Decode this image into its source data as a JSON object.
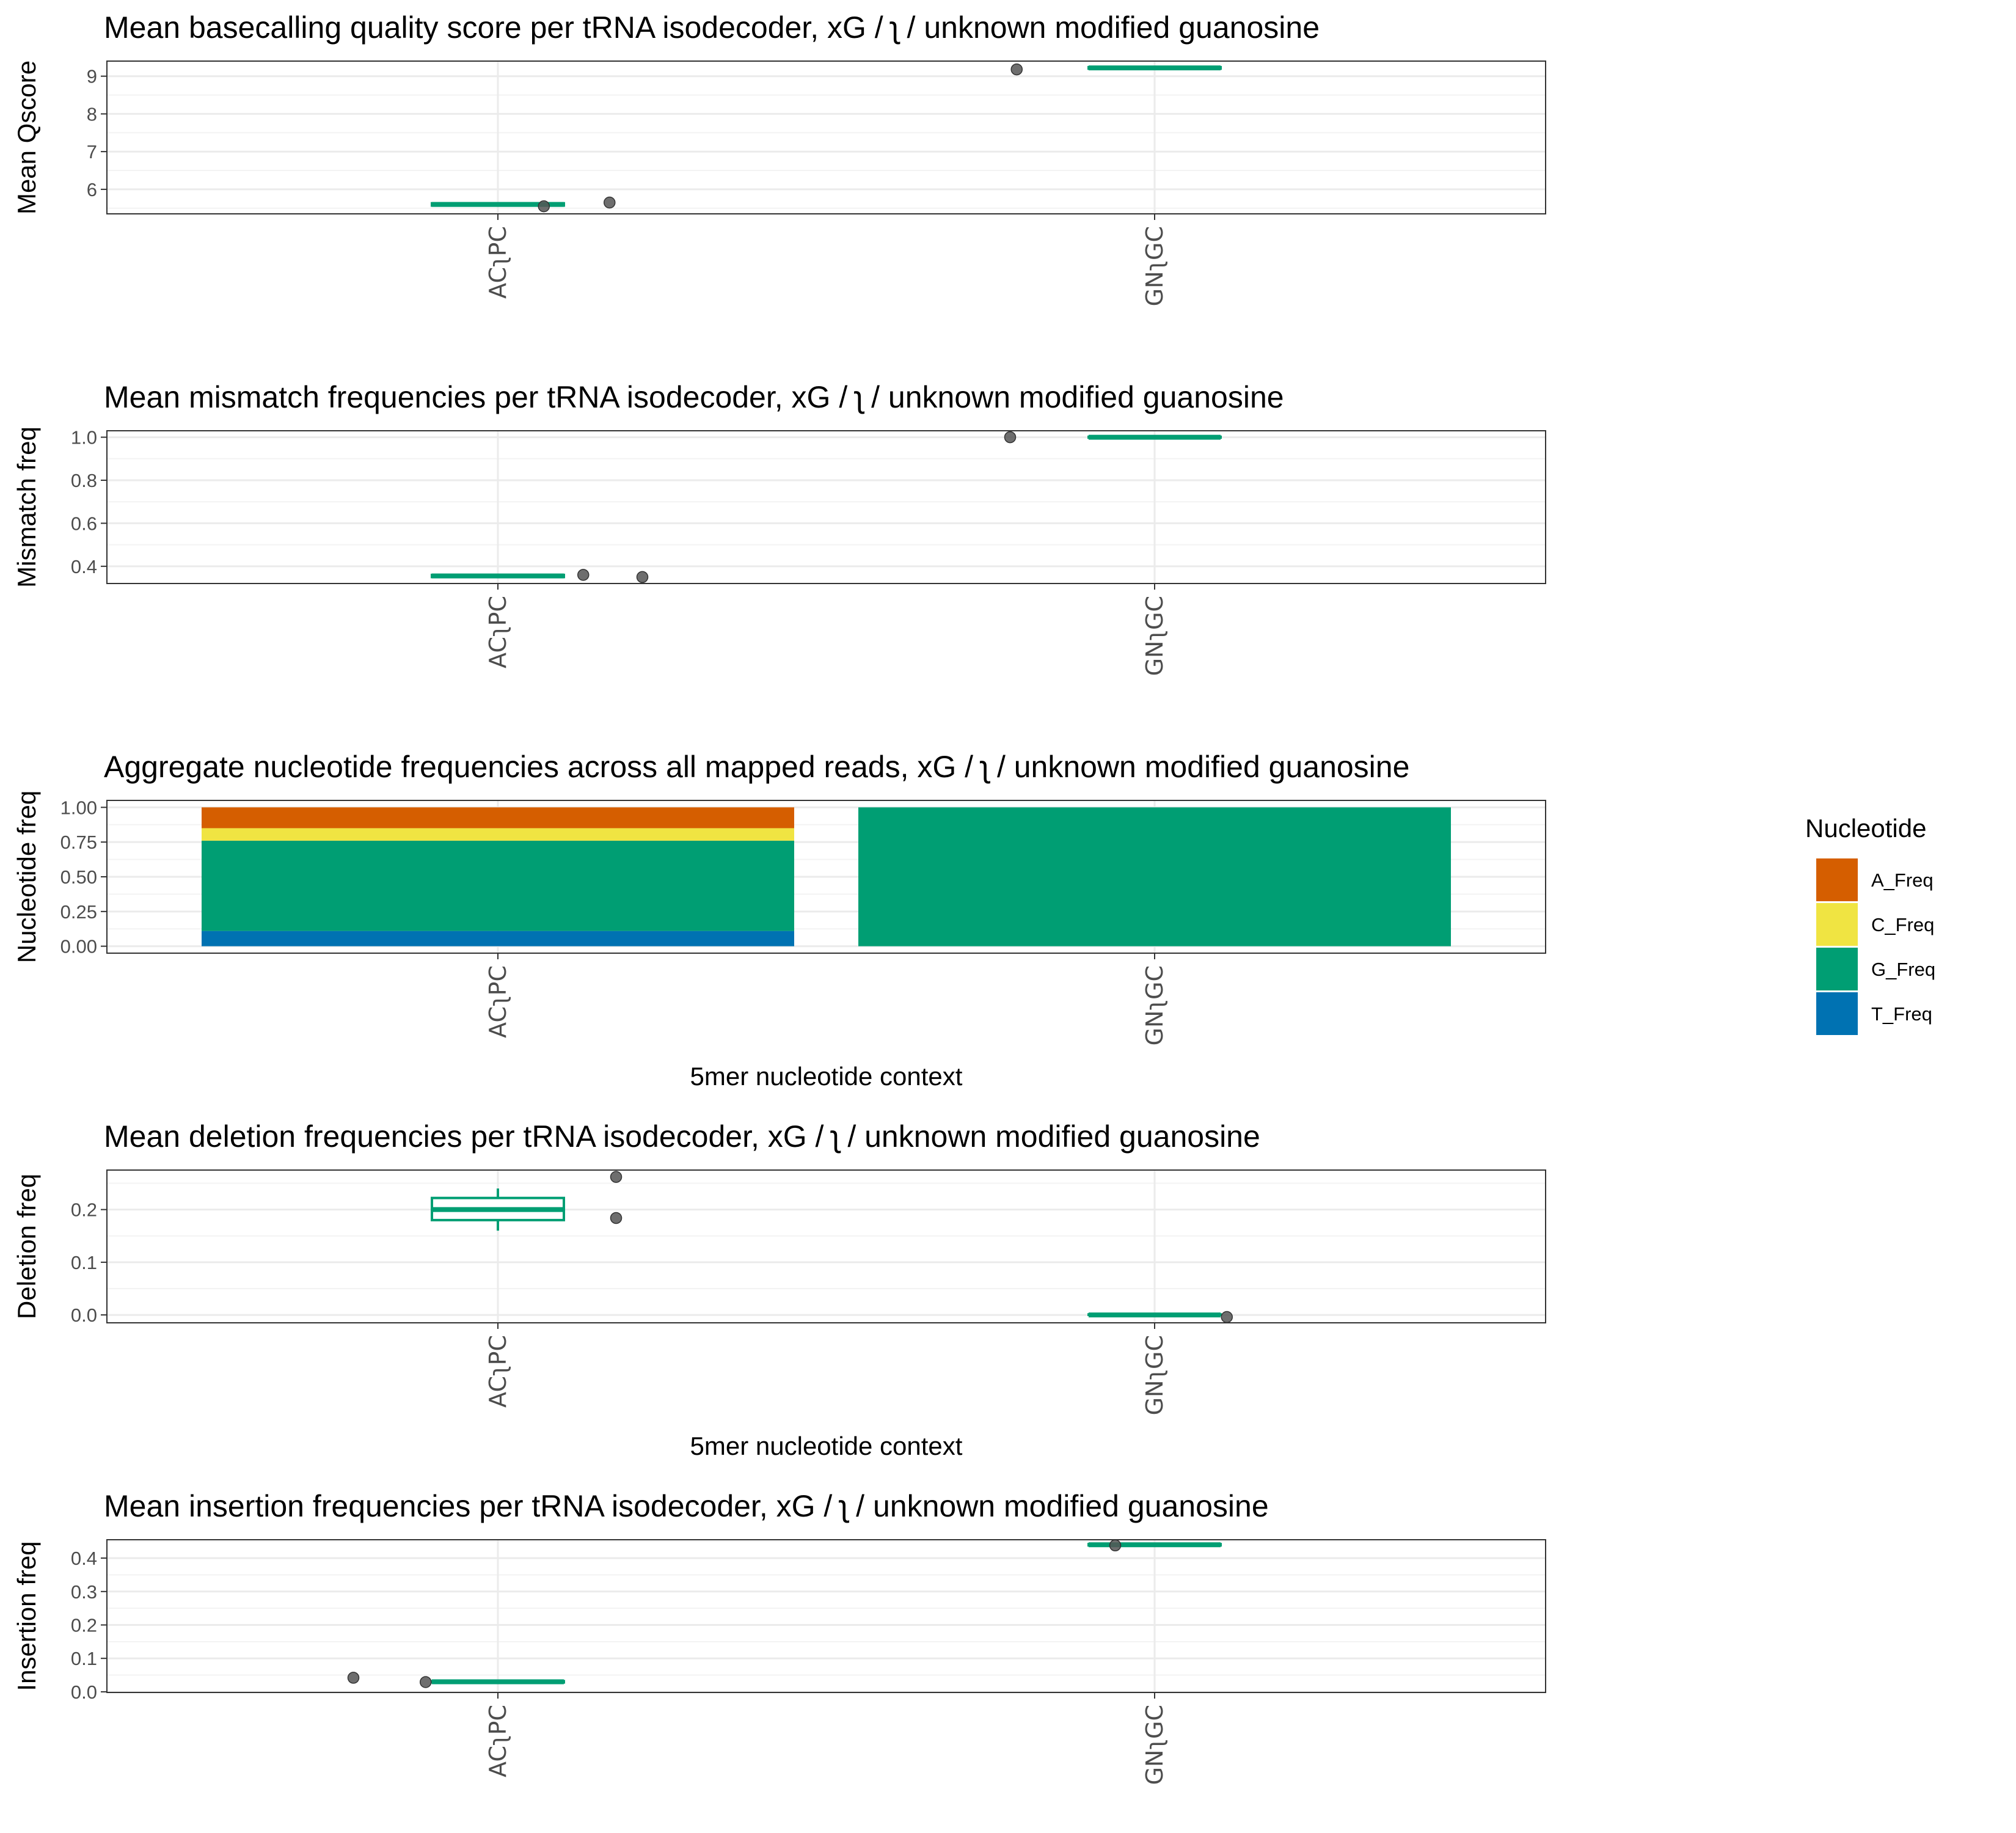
{
  "colors": {
    "box": "#009E73",
    "point": "#555555",
    "A_Freq": "#D55E00",
    "C_Freq": "#F0E442",
    "G_Freq": "#009E73",
    "T_Freq": "#0072B2",
    "grid_major": "#ebebeb",
    "grid_minor": "#f3f3f3",
    "panel_border": "#333333"
  },
  "x_categories": [
    "ACʅPC",
    "GNʅGC"
  ],
  "legend": {
    "title": "Nucleotide",
    "items": [
      "A_Freq",
      "C_Freq",
      "G_Freq",
      "T_Freq"
    ]
  },
  "chart_data": [
    {
      "type": "boxplot",
      "title": "Mean basecalling quality score per tRNA isodecoder, xG / ʅ / unknown modified guanosine",
      "ylabel": "Mean Qscore",
      "xlabel": "",
      "ylim": [
        5.35,
        9.4
      ],
      "yticks": [
        6,
        7,
        8,
        9
      ],
      "ytick_labels": [
        "6",
        "7",
        "8",
        "9"
      ],
      "boxes": [
        {
          "category": "ACʅPC",
          "q1": 5.57,
          "median": 5.6,
          "q3": 5.63,
          "whisker_low": 5.57,
          "whisker_high": 5.63
        },
        {
          "category": "GNʅGC",
          "q1": 9.2,
          "median": 9.22,
          "q3": 9.24,
          "whisker_low": 9.2,
          "whisker_high": 9.24
        }
      ],
      "points": [
        {
          "category": "ACʅPC",
          "offset": 0.07,
          "y": 5.55
        },
        {
          "category": "ACʅPC",
          "offset": 0.17,
          "y": 5.65
        },
        {
          "category": "GNʅGC",
          "offset": -0.21,
          "y": 9.18
        }
      ]
    },
    {
      "type": "boxplot",
      "title": "Mean mismatch frequencies per tRNA isodecoder, xG / ʅ / unknown modified guanosine",
      "ylabel": "Mismatch freq",
      "xlabel": "",
      "ylim": [
        0.32,
        1.03
      ],
      "yticks": [
        0.4,
        0.6,
        0.8,
        1.0
      ],
      "ytick_labels": [
        "0.4",
        "0.6",
        "0.8",
        "1.0"
      ],
      "boxes": [
        {
          "category": "ACʅPC",
          "q1": 0.35,
          "median": 0.355,
          "q3": 0.36,
          "whisker_low": 0.35,
          "whisker_high": 0.36
        },
        {
          "category": "GNʅGC",
          "q1": 0.998,
          "median": 1.0,
          "q3": 1.002,
          "whisker_low": 0.998,
          "whisker_high": 1.002
        }
      ],
      "points": [
        {
          "category": "ACʅPC",
          "offset": 0.13,
          "y": 0.36
        },
        {
          "category": "ACʅPC",
          "offset": 0.22,
          "y": 0.35
        },
        {
          "category": "GNʅGC",
          "offset": -0.22,
          "y": 1.0
        }
      ]
    },
    {
      "type": "stacked_bar",
      "title": "Aggregate nucleotide frequencies across all mapped reads,  xG / ʅ / unknown modified guanosine",
      "ylabel": "Nucleotide freq",
      "xlabel": "5mer nucleotide context",
      "ylim": [
        -0.05,
        1.05
      ],
      "yticks": [
        0,
        0.25,
        0.5,
        0.75,
        1
      ],
      "ytick_labels": [
        "0.00",
        "0.25",
        "0.50",
        "0.75",
        "1.00"
      ],
      "stack_order_bottom_to_top": [
        "T_Freq",
        "G_Freq",
        "C_Freq",
        "A_Freq"
      ],
      "bars": [
        {
          "category": "ACʅPC",
          "A_Freq": 0.15,
          "C_Freq": 0.09,
          "G_Freq": 0.65,
          "T_Freq": 0.11
        },
        {
          "category": "GNʅGC",
          "A_Freq": 0.0,
          "C_Freq": 0.0,
          "G_Freq": 1.0,
          "T_Freq": 0.0
        }
      ]
    },
    {
      "type": "boxplot",
      "title": "Mean deletion frequencies per tRNA isodecoder, xG / ʅ / unknown modified guanosine",
      "ylabel": "Deletion freq",
      "xlabel": "5mer nucleotide context",
      "ylim": [
        -0.015,
        0.275
      ],
      "yticks": [
        0.0,
        0.1,
        0.2
      ],
      "ytick_labels": [
        "0.0",
        "0.1",
        "0.2"
      ],
      "boxes": [
        {
          "category": "ACʅPC",
          "q1": 0.18,
          "median": 0.2,
          "q3": 0.222,
          "whisker_low": 0.16,
          "whisker_high": 0.24
        },
        {
          "category": "GNʅGC",
          "q1": 0.0,
          "median": 0.0,
          "q3": 0.001,
          "whisker_low": 0.0,
          "whisker_high": 0.001
        }
      ],
      "points": [
        {
          "category": "ACʅPC",
          "offset": 0.18,
          "y": 0.262
        },
        {
          "category": "ACʅPC",
          "offset": 0.18,
          "y": 0.184
        },
        {
          "category": "GNʅGC",
          "offset": 0.11,
          "y": -0.004
        }
      ]
    },
    {
      "type": "boxplot",
      "title": "Mean insertion frequencies per tRNA isodecoder, xG / ʅ / unknown modified guanosine",
      "ylabel": "Insertion freq",
      "xlabel": "",
      "ylim": [
        -0.002,
        0.455
      ],
      "yticks": [
        0.0,
        0.1,
        0.2,
        0.3,
        0.4
      ],
      "ytick_labels": [
        "0.0",
        "0.1",
        "0.2",
        "0.3",
        "0.4"
      ],
      "boxes": [
        {
          "category": "ACʅPC",
          "q1": 0.028,
          "median": 0.03,
          "q3": 0.032,
          "whisker_low": 0.028,
          "whisker_high": 0.032
        },
        {
          "category": "GNʅGC",
          "q1": 0.438,
          "median": 0.44,
          "q3": 0.442,
          "whisker_low": 0.438,
          "whisker_high": 0.442
        }
      ],
      "points": [
        {
          "category": "ACʅPC",
          "offset": -0.22,
          "y": 0.042
        },
        {
          "category": "ACʅPC",
          "offset": -0.11,
          "y": 0.029
        },
        {
          "category": "GNʅGC",
          "offset": -0.06,
          "y": 0.438
        }
      ]
    }
  ]
}
